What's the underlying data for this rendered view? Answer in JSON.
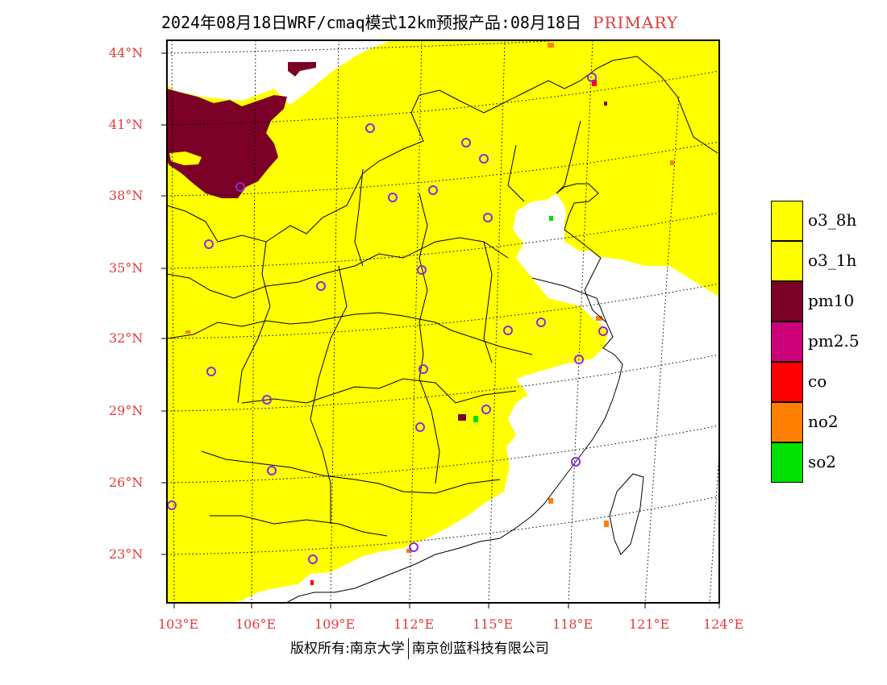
{
  "header": {
    "title": "2024年08月18日WRF/cmaq模式12km预报产品:08月18日",
    "tag": "PRIMARY"
  },
  "map": {
    "lat_labels": [
      "44°N",
      "41°N",
      "38°N",
      "35°N",
      "32°N",
      "29°N",
      "26°N",
      "23°N"
    ],
    "lon_labels": [
      "103°E",
      "106°E",
      "109°E",
      "112°E",
      "115°E",
      "118°E",
      "121°E",
      "124°E"
    ],
    "colors": {
      "o3_8h": "#ffff00",
      "o3_1h": "#ffff00",
      "pm10": "#7a0026",
      "pm25": "#cc0077",
      "co": "#ff0000",
      "no2": "#ff7f00",
      "so2": "#00e000",
      "label": "#e23a3a",
      "station_marker": "#8a2be2",
      "boundary": "#000000"
    }
  },
  "legend": {
    "items": [
      {
        "label": "o3_8h",
        "color": "#ffff00"
      },
      {
        "label": "o3_1h",
        "color": "#ffff00"
      },
      {
        "label": "pm10",
        "color": "#7a0026"
      },
      {
        "label": "pm2.5",
        "color": "#cc0077"
      },
      {
        "label": "co",
        "color": "#ff0000"
      },
      {
        "label": "no2",
        "color": "#ff7f00"
      },
      {
        "label": "so2",
        "color": "#00e000"
      }
    ]
  },
  "footer": {
    "left": "版权所有:南京大学",
    "right": "南京创蓝科技有限公司"
  }
}
